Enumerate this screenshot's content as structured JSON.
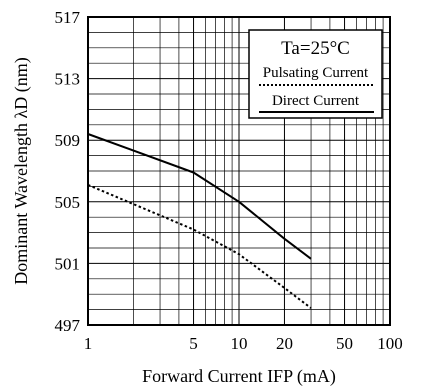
{
  "chart_data": {
    "type": "line",
    "xlabel": "Forward Current IFP (mA)",
    "ylabel": "Dominant Wavelength λD (nm)",
    "x_scale": "log",
    "xlim": [
      1,
      100
    ],
    "ylim": [
      497,
      517
    ],
    "x_ticks": [
      1,
      5,
      10,
      20,
      50,
      100
    ],
    "x_tick_labels": [
      "1",
      "5",
      "10",
      "20",
      "50",
      "100"
    ],
    "y_ticks": [
      497,
      501,
      505,
      509,
      513,
      517
    ],
    "y_tick_labels": [
      "497",
      "501",
      "505",
      "509",
      "513",
      "517"
    ],
    "grid": true,
    "legend_position": "top-right",
    "annotation": "Ta=25°C",
    "series": [
      {
        "name": "Pulsating Current",
        "style": "dotted",
        "x": [
          1,
          5,
          10,
          20,
          30
        ],
        "y": [
          506.1,
          503.2,
          501.6,
          499.4,
          498.1
        ]
      },
      {
        "name": "Direct Current",
        "style": "solid",
        "x": [
          1,
          5,
          10,
          20,
          30
        ],
        "y": [
          509.4,
          506.9,
          505.0,
          502.6,
          501.3
        ]
      }
    ],
    "colors": {
      "line": "#000000",
      "grid": "#000000",
      "background": "#ffffff"
    }
  }
}
